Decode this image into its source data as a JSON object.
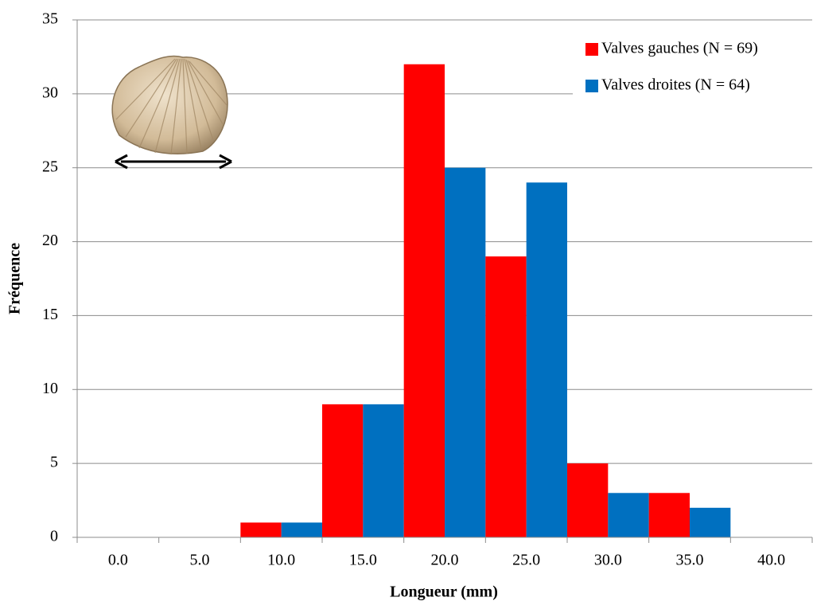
{
  "chart_data": {
    "type": "bar",
    "x_label": "Longueur (mm)",
    "y_label": "Fréquence",
    "categories": [
      "0.0",
      "5.0",
      "10.0",
      "15.0",
      "20.0",
      "25.0",
      "30.0",
      "35.0",
      "40.0"
    ],
    "series": [
      {
        "name": "Valves gauches (N = 69)",
        "color": "#ff0000",
        "values": [
          0,
          0,
          1,
          9,
          32,
          19,
          5,
          3,
          0
        ]
      },
      {
        "name": "Valves droites (N = 64)",
        "color": "#0070c0",
        "values": [
          0,
          0,
          1,
          9,
          25,
          24,
          3,
          2,
          0
        ]
      }
    ],
    "ylim": [
      0,
      35
    ],
    "yticks": [
      0,
      5,
      10,
      15,
      20,
      25,
      30,
      35
    ],
    "grid": true,
    "legend": "top-right"
  }
}
